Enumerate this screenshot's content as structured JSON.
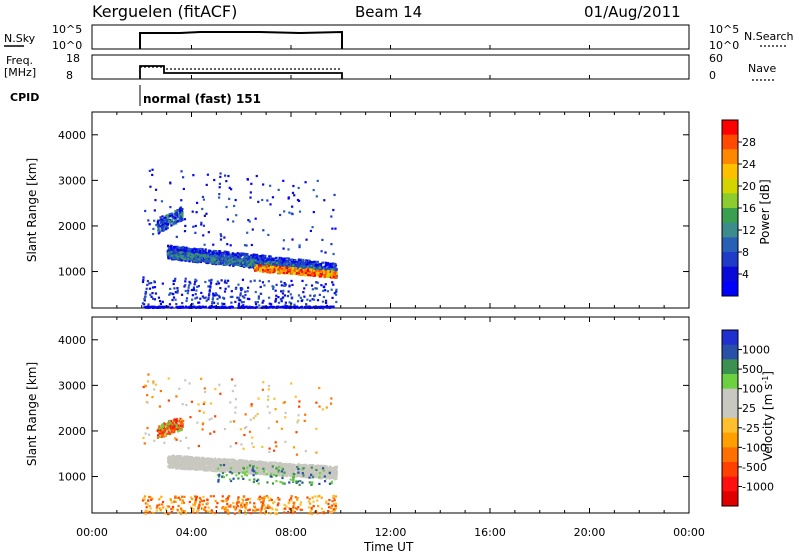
{
  "header": {
    "radar": "Kerguelen (fitACF)",
    "beam": "Beam 14",
    "date": "01/Aug/2011"
  },
  "nsky": {
    "label": "N.Sky",
    "ticks": [
      "10^5",
      "10^0"
    ],
    "right_ticks": [
      "10^5",
      "10^0"
    ],
    "right_label": "N.Search"
  },
  "freq": {
    "label_top": "Freq.",
    "label_bottom": "[MHz]",
    "ticks": [
      "18",
      "8"
    ],
    "right_ticks": [
      "60",
      "0"
    ],
    "right_label": "Nave"
  },
  "cpid": {
    "label": "CPID",
    "value": "normal (fast) 151"
  },
  "chart_data": [
    {
      "type": "heatmap",
      "name": "power",
      "ylabel": "Slant Range [km]",
      "yticks": [
        "1000",
        "2000",
        "3000",
        "4000"
      ],
      "ylim": [
        200,
        4500
      ],
      "colorbar": {
        "label": "Power [dB]",
        "ticks": [
          "28",
          "24",
          "20",
          "16",
          "12",
          "8",
          "4"
        ],
        "colors": [
          "#ff0000",
          "#ff4a00",
          "#ff8800",
          "#ffc000",
          "#d4d400",
          "#8ccc2c",
          "#3aa050",
          "#3c8c8c",
          "#2860b8",
          "#1f3cc8",
          "#0a0ad8",
          "#0000ff"
        ]
      }
    },
    {
      "type": "heatmap",
      "name": "velocity",
      "ylabel": "Slant Range [km]",
      "yticks": [
        "1000",
        "2000",
        "3000",
        "4000"
      ],
      "ylim": [
        200,
        4500
      ],
      "colorbar": {
        "label": "Velocity [m s",
        "label_sup": "-1",
        "label_end": "]",
        "ticks": [
          "1000",
          "500",
          "100",
          "25",
          "-25",
          "-100",
          "-500",
          "-1000"
        ],
        "colors": [
          "#2030d0",
          "#2850a8",
          "#3c9050",
          "#6cd040",
          "#c8c8c0",
          "#c8c8c0",
          "#ffc030",
          "#ffa000",
          "#ff7000",
          "#ff4000",
          "#ff1010",
          "#e00000"
        ]
      }
    }
  ],
  "time_axis": {
    "label": "Time UT",
    "ticks": [
      "00:00",
      "04:00",
      "08:00",
      "12:00",
      "16:00",
      "20:00",
      "00:00"
    ],
    "xlim": [
      0,
      24
    ]
  }
}
